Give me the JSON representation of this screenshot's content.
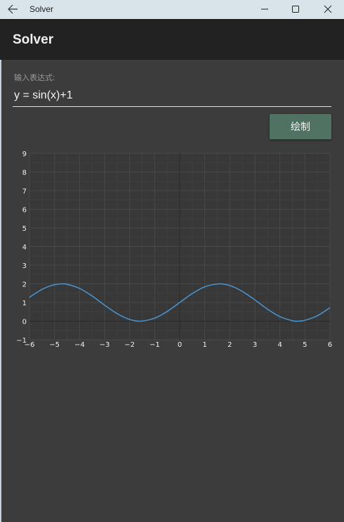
{
  "window": {
    "title": "Solver",
    "back_icon": "arrow-left-icon",
    "minimize_icon": "minimize-icon",
    "maximize_icon": "maximize-icon",
    "close_icon": "close-icon"
  },
  "appbar": {
    "title": "Solver"
  },
  "form": {
    "label": "输入表达式:",
    "expression": "y = sin(x)+1",
    "draw_label": "绘制"
  },
  "colors": {
    "titlebar": "#d8e4ea",
    "appbar": "#222222",
    "background": "#3c3c3c",
    "button": "#4f7263",
    "line": "#4a90c8"
  },
  "chart_data": {
    "type": "line",
    "title": "",
    "xlabel": "",
    "ylabel": "",
    "xlim": [
      -6,
      6
    ],
    "ylim": [
      -1,
      9
    ],
    "x_ticks": [
      "−6",
      "−5",
      "−4",
      "−3",
      "−2",
      "−1",
      "0",
      "1",
      "2",
      "3",
      "4",
      "5",
      "6"
    ],
    "y_ticks": [
      "−1",
      "0",
      "1",
      "2",
      "3",
      "4",
      "5",
      "6",
      "7",
      "8",
      "9"
    ],
    "grid": true,
    "series": [
      {
        "function": "y = sin(x)+1",
        "x": [
          -6,
          -5.5,
          -5,
          -4.712,
          -4.5,
          -4,
          -3.5,
          -3,
          -2.5,
          -2,
          -1.571,
          -1,
          -0.5,
          0,
          0.5,
          1,
          1.571,
          2,
          2.5,
          3,
          3.5,
          4,
          4.5,
          4.712,
          5,
          5.5,
          6
        ],
        "y": [
          1.279,
          1.706,
          1.959,
          2.0,
          1.978,
          1.757,
          1.351,
          0.859,
          0.402,
          0.091,
          0.0,
          0.159,
          0.521,
          1.0,
          1.479,
          1.841,
          2.0,
          1.909,
          1.598,
          1.141,
          0.649,
          0.243,
          0.022,
          0.0,
          0.041,
          0.294,
          0.721
        ]
      }
    ]
  }
}
